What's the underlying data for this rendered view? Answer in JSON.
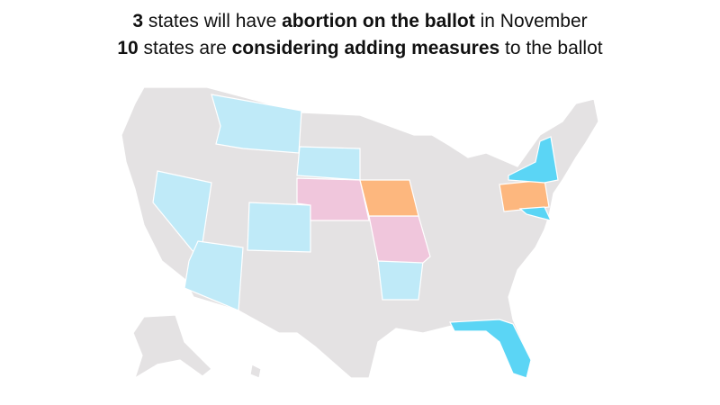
{
  "title": {
    "line1": [
      {
        "text": "3",
        "bold": true
      },
      {
        "text": " states will have ",
        "bold": false
      },
      {
        "text": "abortion on the ballot",
        "bold": true
      },
      {
        "text": " in November",
        "bold": false
      }
    ],
    "line2": [
      {
        "text": "10",
        "bold": true
      },
      {
        "text": " states are ",
        "bold": false
      },
      {
        "text": "considering adding measures",
        "bold": true
      },
      {
        "text": " to the ballot",
        "bold": false
      }
    ]
  }
}
